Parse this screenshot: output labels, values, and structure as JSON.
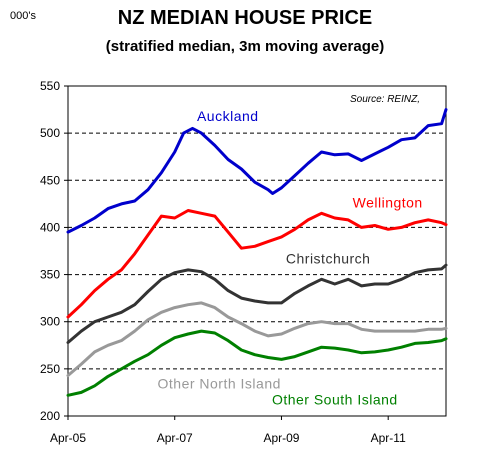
{
  "chart_data": {
    "type": "line",
    "title": "NZ MEDIAN HOUSE PRICE",
    "subtitle": "(stratified median, 3m moving average)",
    "ylabel": "000's",
    "source": "Source: REINZ,",
    "ylim": [
      200,
      550
    ],
    "yticks": [
      200,
      250,
      300,
      350,
      400,
      450,
      500,
      550
    ],
    "xlim": [
      "2005-04",
      "2012-05"
    ],
    "xticks": [
      "Apr-05",
      "Apr-07",
      "Apr-09",
      "Apr-11"
    ],
    "grid": "horizontal-dashed",
    "legend": "inline-labels",
    "series": [
      {
        "name": "Auckland",
        "color": "#0000cc",
        "points": [
          [
            "2005-04",
            395
          ],
          [
            "2005-07",
            402
          ],
          [
            "2005-10",
            410
          ],
          [
            "2006-01",
            420
          ],
          [
            "2006-04",
            425
          ],
          [
            "2006-07",
            428
          ],
          [
            "2006-10",
            440
          ],
          [
            "2007-01",
            458
          ],
          [
            "2007-04",
            480
          ],
          [
            "2007-06",
            500
          ],
          [
            "2007-08",
            505
          ],
          [
            "2007-10",
            500
          ],
          [
            "2008-01",
            487
          ],
          [
            "2008-04",
            472
          ],
          [
            "2008-07",
            462
          ],
          [
            "2008-10",
            448
          ],
          [
            "2009-01",
            440
          ],
          [
            "2009-02",
            436
          ],
          [
            "2009-04",
            442
          ],
          [
            "2009-07",
            455
          ],
          [
            "2009-10",
            468
          ],
          [
            "2010-01",
            480
          ],
          [
            "2010-04",
            477
          ],
          [
            "2010-07",
            478
          ],
          [
            "2010-10",
            471
          ],
          [
            "2011-01",
            478
          ],
          [
            "2011-04",
            485
          ],
          [
            "2011-07",
            493
          ],
          [
            "2011-10",
            495
          ],
          [
            "2012-01",
            508
          ],
          [
            "2012-04",
            510
          ],
          [
            "2012-05",
            525
          ]
        ]
      },
      {
        "name": "Wellington",
        "color": "#ff0000",
        "points": [
          [
            "2005-04",
            305
          ],
          [
            "2005-07",
            318
          ],
          [
            "2005-10",
            333
          ],
          [
            "2006-01",
            345
          ],
          [
            "2006-04",
            355
          ],
          [
            "2006-07",
            372
          ],
          [
            "2006-10",
            392
          ],
          [
            "2007-01",
            412
          ],
          [
            "2007-04",
            410
          ],
          [
            "2007-07",
            418
          ],
          [
            "2007-10",
            415
          ],
          [
            "2008-01",
            412
          ],
          [
            "2008-04",
            395
          ],
          [
            "2008-07",
            378
          ],
          [
            "2008-10",
            380
          ],
          [
            "2009-01",
            385
          ],
          [
            "2009-04",
            390
          ],
          [
            "2009-07",
            398
          ],
          [
            "2009-10",
            408
          ],
          [
            "2010-01",
            415
          ],
          [
            "2010-04",
            410
          ],
          [
            "2010-07",
            408
          ],
          [
            "2010-10",
            400
          ],
          [
            "2011-01",
            402
          ],
          [
            "2011-04",
            398
          ],
          [
            "2011-07",
            400
          ],
          [
            "2011-10",
            405
          ],
          [
            "2012-01",
            408
          ],
          [
            "2012-04",
            405
          ],
          [
            "2012-05",
            403
          ]
        ]
      },
      {
        "name": "Christchurch",
        "color": "#333333",
        "points": [
          [
            "2005-04",
            278
          ],
          [
            "2005-07",
            290
          ],
          [
            "2005-10",
            300
          ],
          [
            "2006-01",
            305
          ],
          [
            "2006-04",
            310
          ],
          [
            "2006-07",
            318
          ],
          [
            "2006-10",
            332
          ],
          [
            "2007-01",
            345
          ],
          [
            "2007-04",
            352
          ],
          [
            "2007-07",
            355
          ],
          [
            "2007-10",
            353
          ],
          [
            "2008-01",
            345
          ],
          [
            "2008-04",
            333
          ],
          [
            "2008-07",
            325
          ],
          [
            "2008-10",
            322
          ],
          [
            "2009-01",
            320
          ],
          [
            "2009-04",
            320
          ],
          [
            "2009-07",
            330
          ],
          [
            "2009-10",
            338
          ],
          [
            "2010-01",
            345
          ],
          [
            "2010-04",
            340
          ],
          [
            "2010-07",
            345
          ],
          [
            "2010-10",
            338
          ],
          [
            "2011-01",
            340
          ],
          [
            "2011-04",
            340
          ],
          [
            "2011-07",
            345
          ],
          [
            "2011-10",
            352
          ],
          [
            "2012-01",
            355
          ],
          [
            "2012-04",
            356
          ],
          [
            "2012-05",
            360
          ]
        ]
      },
      {
        "name": "Other North Island",
        "color": "#999999",
        "points": [
          [
            "2005-04",
            243
          ],
          [
            "2005-07",
            255
          ],
          [
            "2005-10",
            268
          ],
          [
            "2006-01",
            275
          ],
          [
            "2006-04",
            280
          ],
          [
            "2006-07",
            290
          ],
          [
            "2006-10",
            302
          ],
          [
            "2007-01",
            310
          ],
          [
            "2007-04",
            315
          ],
          [
            "2007-07",
            318
          ],
          [
            "2007-10",
            320
          ],
          [
            "2008-01",
            315
          ],
          [
            "2008-04",
            305
          ],
          [
            "2008-07",
            298
          ],
          [
            "2008-10",
            290
          ],
          [
            "2009-01",
            285
          ],
          [
            "2009-04",
            287
          ],
          [
            "2009-07",
            293
          ],
          [
            "2009-10",
            298
          ],
          [
            "2010-01",
            300
          ],
          [
            "2010-04",
            298
          ],
          [
            "2010-07",
            298
          ],
          [
            "2010-10",
            292
          ],
          [
            "2011-01",
            290
          ],
          [
            "2011-04",
            290
          ],
          [
            "2011-07",
            290
          ],
          [
            "2011-10",
            290
          ],
          [
            "2012-01",
            292
          ],
          [
            "2012-04",
            292
          ],
          [
            "2012-05",
            293
          ]
        ]
      },
      {
        "name": "Other South Island",
        "color": "#008000",
        "points": [
          [
            "2005-04",
            222
          ],
          [
            "2005-07",
            225
          ],
          [
            "2005-10",
            232
          ],
          [
            "2006-01",
            242
          ],
          [
            "2006-04",
            250
          ],
          [
            "2006-07",
            258
          ],
          [
            "2006-10",
            265
          ],
          [
            "2007-01",
            275
          ],
          [
            "2007-04",
            283
          ],
          [
            "2007-07",
            287
          ],
          [
            "2007-10",
            290
          ],
          [
            "2008-01",
            288
          ],
          [
            "2008-04",
            280
          ],
          [
            "2008-07",
            270
          ],
          [
            "2008-10",
            265
          ],
          [
            "2009-01",
            262
          ],
          [
            "2009-04",
            260
          ],
          [
            "2009-07",
            263
          ],
          [
            "2009-10",
            268
          ],
          [
            "2010-01",
            273
          ],
          [
            "2010-04",
            272
          ],
          [
            "2010-07",
            270
          ],
          [
            "2010-10",
            267
          ],
          [
            "2011-01",
            268
          ],
          [
            "2011-04",
            270
          ],
          [
            "2011-07",
            273
          ],
          [
            "2011-10",
            277
          ],
          [
            "2012-01",
            278
          ],
          [
            "2012-04",
            280
          ],
          [
            "2012-05",
            282
          ]
        ]
      }
    ]
  }
}
